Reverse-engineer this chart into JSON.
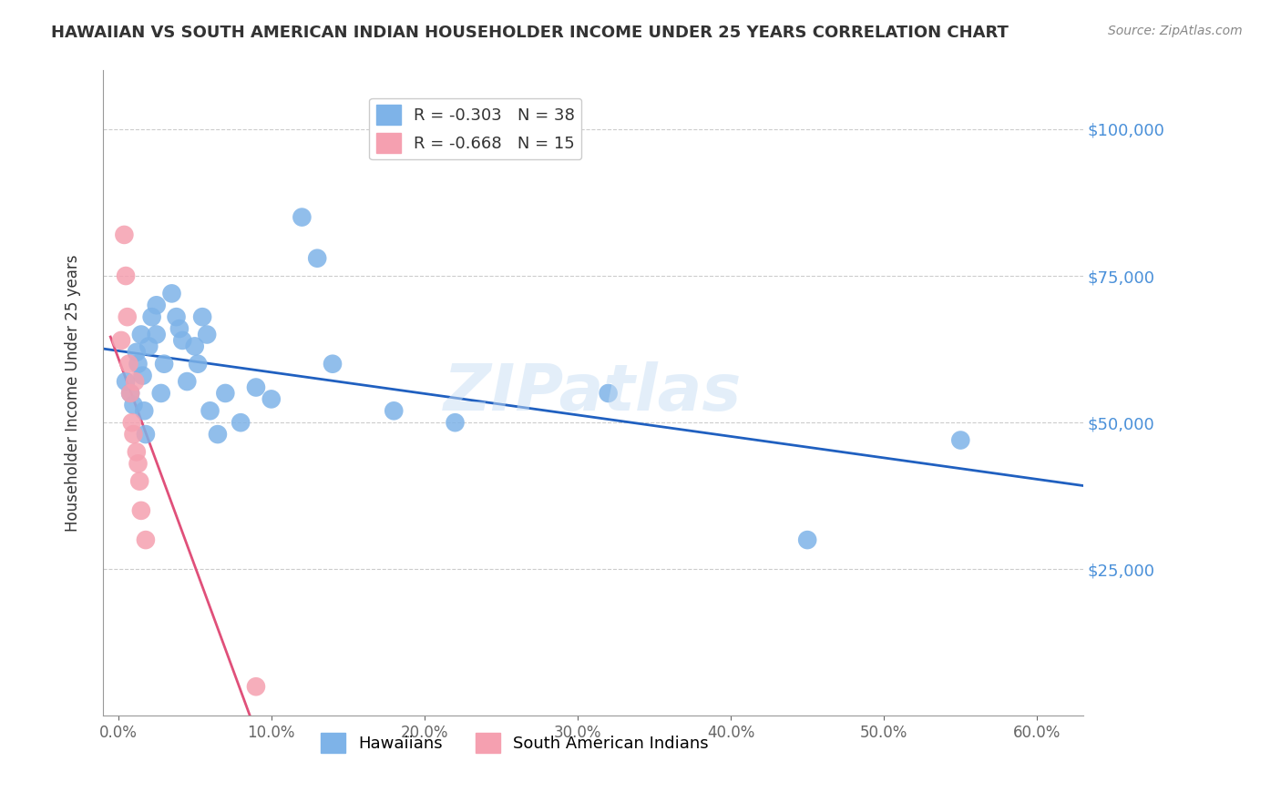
{
  "title": "HAWAIIAN VS SOUTH AMERICAN INDIAN HOUSEHOLDER INCOME UNDER 25 YEARS CORRELATION CHART",
  "source": "Source: ZipAtlas.com",
  "ylabel": "Householder Income Under 25 years",
  "xlabel_ticks": [
    "0.0%",
    "10.0%",
    "20.0%",
    "30.0%",
    "40.0%",
    "50.0%",
    "60.0%"
  ],
  "xlabel_vals": [
    0.0,
    0.1,
    0.2,
    0.3,
    0.4,
    0.5,
    0.6
  ],
  "ytick_labels": [
    "$25,000",
    "$50,000",
    "$75,000",
    "$100,000"
  ],
  "ytick_vals": [
    25000,
    50000,
    75000,
    100000
  ],
  "ylim": [
    0,
    110000
  ],
  "xlim": [
    -0.01,
    0.63
  ],
  "hawaiians_R": -0.303,
  "hawaiians_N": 38,
  "sa_indians_R": -0.668,
  "sa_indians_N": 15,
  "hawaiians_color": "#7eb3e8",
  "sa_indians_color": "#f5a0b0",
  "hawaiians_line_color": "#2060c0",
  "sa_indians_line_color": "#e0507a",
  "watermark": "ZIPatlas",
  "hawaiians_x": [
    0.005,
    0.008,
    0.01,
    0.012,
    0.013,
    0.015,
    0.016,
    0.017,
    0.018,
    0.02,
    0.022,
    0.025,
    0.025,
    0.028,
    0.03,
    0.035,
    0.038,
    0.04,
    0.042,
    0.045,
    0.05,
    0.052,
    0.055,
    0.058,
    0.06,
    0.065,
    0.07,
    0.08,
    0.09,
    0.1,
    0.12,
    0.13,
    0.14,
    0.18,
    0.22,
    0.32,
    0.45,
    0.55
  ],
  "hawaiians_y": [
    57000,
    55000,
    53000,
    62000,
    60000,
    65000,
    58000,
    52000,
    48000,
    63000,
    68000,
    70000,
    65000,
    55000,
    60000,
    72000,
    68000,
    66000,
    64000,
    57000,
    63000,
    60000,
    68000,
    65000,
    52000,
    48000,
    55000,
    50000,
    56000,
    54000,
    85000,
    78000,
    60000,
    52000,
    50000,
    55000,
    30000,
    47000
  ],
  "sa_indians_x": [
    0.002,
    0.004,
    0.005,
    0.006,
    0.007,
    0.008,
    0.009,
    0.01,
    0.011,
    0.012,
    0.013,
    0.014,
    0.015,
    0.018,
    0.09
  ],
  "sa_indians_y": [
    64000,
    82000,
    75000,
    68000,
    60000,
    55000,
    50000,
    48000,
    57000,
    45000,
    43000,
    40000,
    35000,
    30000,
    5000
  ]
}
